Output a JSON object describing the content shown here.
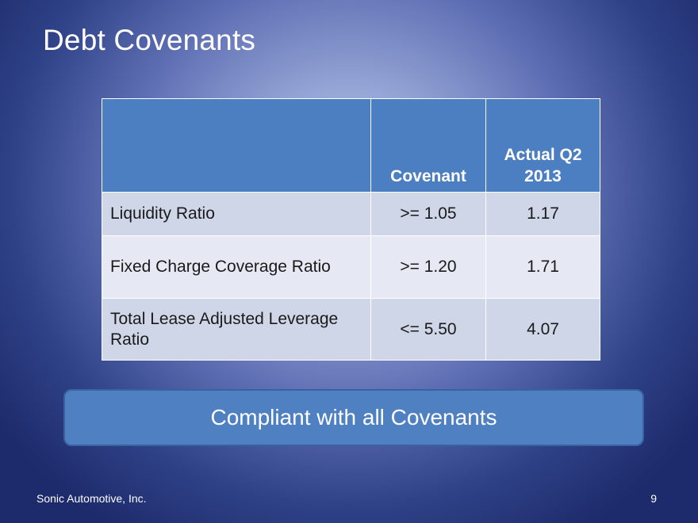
{
  "slide": {
    "title": "Debt Covenants",
    "banner": "Compliant with all Covenants",
    "footer": "Sonic Automotive, Inc.",
    "page_number": "9"
  },
  "table": {
    "headers": [
      "",
      "Covenant",
      "Actual Q2 2013"
    ],
    "rows": [
      {
        "label": "Liquidity Ratio",
        "covenant": ">= 1.05",
        "actual": "1.17"
      },
      {
        "label": "Fixed Charge Coverage Ratio",
        "covenant": ">= 1.20",
        "actual": "1.71"
      },
      {
        "label": "Total Lease Adjusted Leverage Ratio",
        "covenant": "<= 5.50",
        "actual": "4.07"
      }
    ]
  },
  "colors": {
    "header_fill": "#4b7fc2",
    "row_dark": "#cfd6e8",
    "row_light": "#e6e9f3",
    "banner_fill": "#4e80c2"
  }
}
